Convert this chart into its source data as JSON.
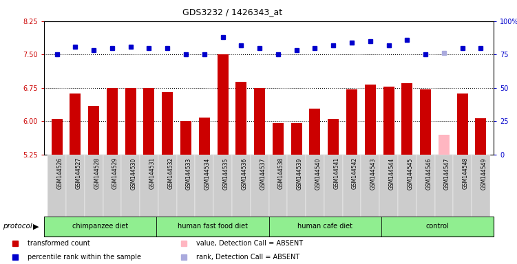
{
  "title": "GDS3232 / 1426343_at",
  "samples": [
    "GSM144526",
    "GSM144527",
    "GSM144528",
    "GSM144529",
    "GSM144530",
    "GSM144531",
    "GSM144532",
    "GSM144533",
    "GSM144534",
    "GSM144535",
    "GSM144536",
    "GSM144537",
    "GSM144538",
    "GSM144539",
    "GSM144540",
    "GSM144541",
    "GSM144542",
    "GSM144543",
    "GSM144544",
    "GSM144545",
    "GSM144546",
    "GSM144547",
    "GSM144548",
    "GSM144549"
  ],
  "bar_values": [
    6.05,
    6.62,
    6.35,
    6.75,
    6.75,
    6.75,
    6.65,
    6.0,
    6.08,
    7.5,
    6.88,
    6.75,
    5.95,
    5.95,
    6.28,
    6.05,
    6.72,
    6.82,
    6.78,
    6.85,
    6.72,
    5.7,
    6.62,
    6.07
  ],
  "rank_values": [
    75,
    81,
    78,
    80,
    81,
    80,
    80,
    75,
    75,
    88,
    82,
    80,
    75,
    78,
    80,
    82,
    84,
    85,
    82,
    86,
    75,
    76,
    80,
    80
  ],
  "absent_bar": [
    false,
    false,
    false,
    false,
    false,
    false,
    false,
    false,
    false,
    false,
    false,
    false,
    false,
    false,
    false,
    false,
    false,
    false,
    false,
    false,
    false,
    true,
    false,
    false
  ],
  "absent_rank": [
    false,
    false,
    false,
    false,
    false,
    false,
    false,
    false,
    false,
    false,
    false,
    false,
    false,
    false,
    false,
    false,
    false,
    false,
    false,
    false,
    false,
    true,
    false,
    false
  ],
  "groups": [
    {
      "label": "chimpanzee diet",
      "start": 0,
      "end": 6,
      "color": "#90EE90"
    },
    {
      "label": "human fast food diet",
      "start": 6,
      "end": 12,
      "color": "#90EE90"
    },
    {
      "label": "human cafe diet",
      "start": 12,
      "end": 18,
      "color": "#90EE90"
    },
    {
      "label": "control",
      "start": 18,
      "end": 24,
      "color": "#90EE90"
    }
  ],
  "ylim_left": [
    5.25,
    8.25
  ],
  "ylim_right": [
    0,
    100
  ],
  "yticks_left": [
    5.25,
    6.0,
    6.75,
    7.5,
    8.25
  ],
  "yticks_right": [
    0,
    25,
    50,
    75,
    100
  ],
  "bar_color": "#CC0000",
  "absent_bar_color": "#FFB6C1",
  "rank_color": "#0000CC",
  "absent_rank_color": "#AAAADD",
  "dotted_line_color": "#000000",
  "legend_items": [
    {
      "label": "transformed count",
      "color": "#CC0000",
      "marker": "s"
    },
    {
      "label": "percentile rank within the sample",
      "color": "#0000CC",
      "marker": "s"
    },
    {
      "label": "value, Detection Call = ABSENT",
      "color": "#FFB6C1",
      "marker": "s"
    },
    {
      "label": "rank, Detection Call = ABSENT",
      "color": "#AAAADD",
      "marker": "s"
    }
  ]
}
